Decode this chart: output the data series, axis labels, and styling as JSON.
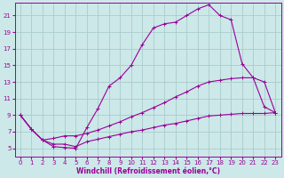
{
  "xlabel": "Windchill (Refroidissement éolien,°C)",
  "background_color": "#cce8e8",
  "grid_color": "#aacccc",
  "line_color": "#990099",
  "xlim": [
    -0.5,
    23.5
  ],
  "ylim": [
    4.0,
    22.5
  ],
  "yticks": [
    5,
    7,
    9,
    11,
    13,
    15,
    17,
    19,
    21
  ],
  "xticks": [
    0,
    1,
    2,
    3,
    4,
    5,
    6,
    7,
    8,
    9,
    10,
    11,
    12,
    13,
    14,
    15,
    16,
    17,
    18,
    19,
    20,
    21,
    22,
    23
  ],
  "curve1_x": [
    0,
    1,
    2,
    3,
    4,
    5,
    6,
    7,
    8,
    9,
    10,
    11,
    12,
    13,
    14,
    15,
    16,
    17,
    18,
    19,
    20,
    21,
    22,
    23
  ],
  "curve1_y": [
    9.0,
    7.3,
    6.0,
    5.2,
    5.1,
    5.0,
    7.5,
    9.8,
    12.5,
    13.5,
    15.0,
    17.5,
    19.5,
    20.0,
    20.2,
    21.0,
    21.8,
    22.3,
    21.0,
    20.5,
    15.2,
    13.5,
    13.0,
    9.3
  ],
  "curve2_x": [
    0,
    1,
    2,
    3,
    4,
    5,
    6,
    7,
    8,
    9,
    10,
    11,
    12,
    13,
    14,
    15,
    16,
    17,
    18,
    19,
    20,
    21,
    22,
    23
  ],
  "curve2_y": [
    9.0,
    7.3,
    6.0,
    6.2,
    6.5,
    6.5,
    6.8,
    7.2,
    7.7,
    8.2,
    8.8,
    9.3,
    9.9,
    10.5,
    11.2,
    11.8,
    12.5,
    13.0,
    13.2,
    13.4,
    13.5,
    13.5,
    10.0,
    9.3
  ],
  "curve3_x": [
    0,
    1,
    2,
    3,
    4,
    5,
    6,
    7,
    8,
    9,
    10,
    11,
    12,
    13,
    14,
    15,
    16,
    17,
    18,
    19,
    20,
    21,
    22,
    23
  ],
  "curve3_y": [
    9.0,
    7.3,
    6.0,
    5.5,
    5.5,
    5.2,
    5.8,
    6.1,
    6.4,
    6.7,
    7.0,
    7.2,
    7.5,
    7.8,
    8.0,
    8.3,
    8.6,
    8.9,
    9.0,
    9.1,
    9.2,
    9.2,
    9.2,
    9.3
  ],
  "tick_fontsize": 5.0,
  "xlabel_fontsize": 5.5,
  "marker_size": 1.8,
  "line_width": 0.8
}
